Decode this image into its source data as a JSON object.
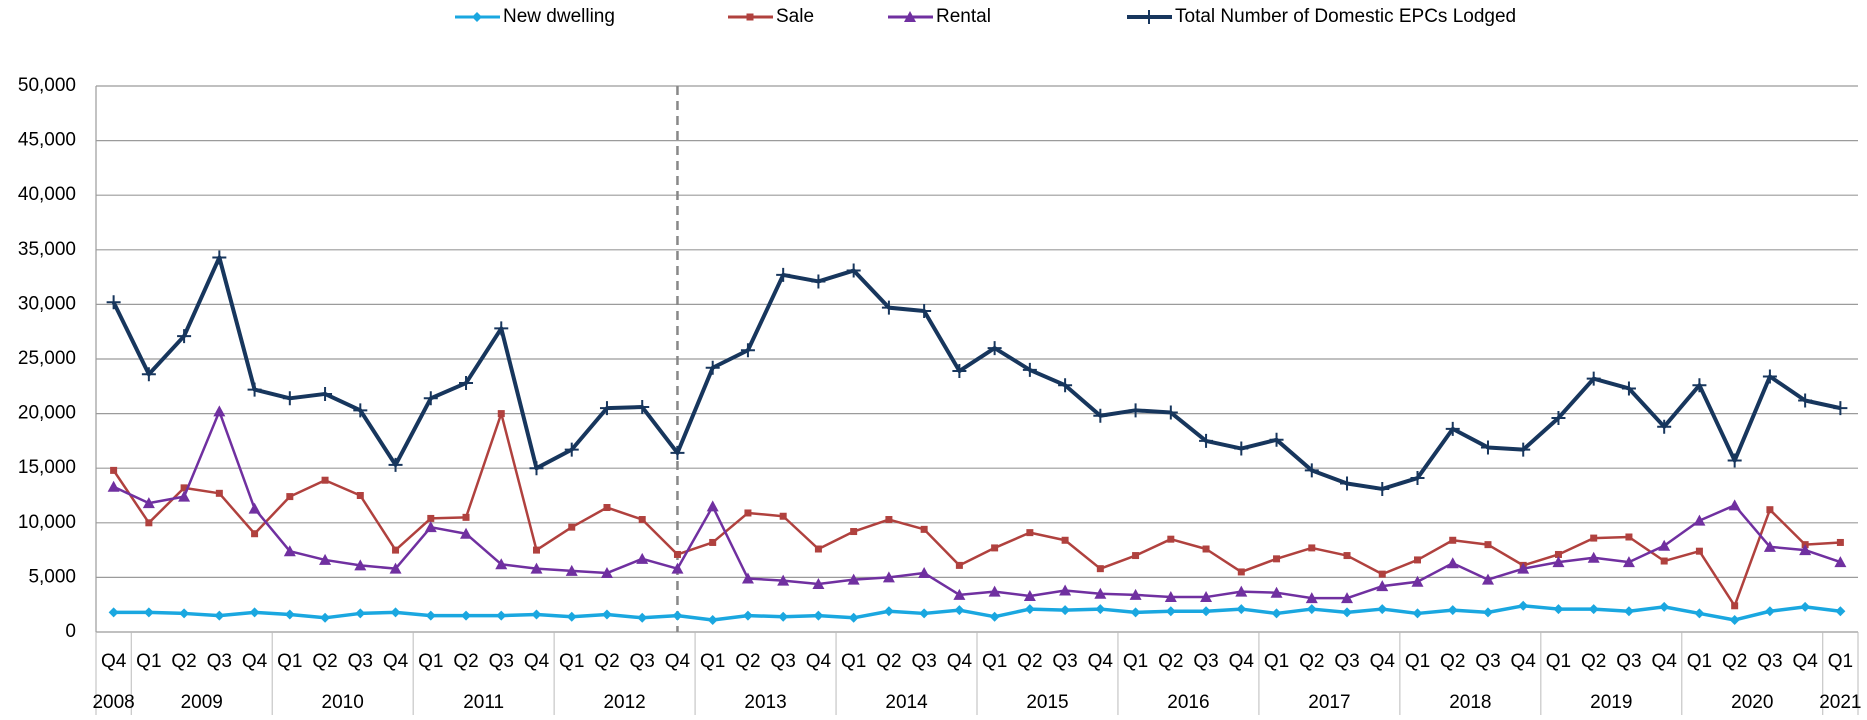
{
  "chart_data": {
    "type": "line",
    "categories": [
      "Q4",
      "Q1",
      "Q2",
      "Q3",
      "Q4",
      "Q1",
      "Q2",
      "Q3",
      "Q4",
      "Q1",
      "Q2",
      "Q3",
      "Q4",
      "Q1",
      "Q2",
      "Q3",
      "Q4",
      "Q1",
      "Q2",
      "Q3",
      "Q4",
      "Q1",
      "Q2",
      "Q3",
      "Q4",
      "Q1",
      "Q2",
      "Q3",
      "Q4",
      "Q1",
      "Q2",
      "Q3",
      "Q4",
      "Q1",
      "Q2",
      "Q3",
      "Q4",
      "Q1",
      "Q2",
      "Q3",
      "Q4",
      "Q1",
      "Q2",
      "Q3",
      "Q4",
      "Q1",
      "Q2",
      "Q3",
      "Q4",
      "Q1"
    ],
    "category_groups": [
      {
        "label": "2008",
        "count": 1
      },
      {
        "label": "2009",
        "count": 4
      },
      {
        "label": "2010",
        "count": 4
      },
      {
        "label": "2011",
        "count": 4
      },
      {
        "label": "2012",
        "count": 4
      },
      {
        "label": "2013",
        "count": 4
      },
      {
        "label": "2014",
        "count": 4
      },
      {
        "label": "2015",
        "count": 4
      },
      {
        "label": "2016",
        "count": 4
      },
      {
        "label": "2017",
        "count": 4
      },
      {
        "label": "2018",
        "count": 4
      },
      {
        "label": "2019",
        "count": 4
      },
      {
        "label": "2020",
        "count": 4
      },
      {
        "label": "2021",
        "count": 1
      }
    ],
    "series": [
      {
        "name": "New dwelling",
        "color": "#1aa7e0",
        "marker": "diamond",
        "values": [
          1800,
          1800,
          1700,
          1500,
          1800,
          1600,
          1300,
          1700,
          1800,
          1500,
          1500,
          1500,
          1600,
          1400,
          1600,
          1300,
          1500,
          1100,
          1500,
          1400,
          1500,
          1300,
          1900,
          1700,
          2000,
          1400,
          2100,
          2000,
          2100,
          1800,
          1900,
          1900,
          2100,
          1700,
          2100,
          1800,
          2100,
          1700,
          2000,
          1800,
          2400,
          2100,
          2100,
          1900,
          2300,
          1700,
          1100,
          1900,
          2300,
          1900
        ]
      },
      {
        "name": "Sale",
        "color": "#b0413e",
        "marker": "square",
        "values": [
          14800,
          10000,
          13200,
          12700,
          9000,
          12400,
          13900,
          12500,
          7500,
          10400,
          10500,
          20000,
          7500,
          9600,
          11400,
          10300,
          7100,
          8200,
          10900,
          10600,
          7600,
          9200,
          10300,
          9400,
          6100,
          7700,
          9100,
          8400,
          5800,
          7000,
          8500,
          7600,
          5500,
          6700,
          7700,
          7000,
          5300,
          6600,
          8400,
          8000,
          6100,
          7100,
          8600,
          8700,
          6500,
          7400,
          2400,
          11200,
          8000,
          8200
        ]
      },
      {
        "name": "Rental",
        "color": "#7030a0",
        "marker": "triangle",
        "values": [
          13300,
          11800,
          12400,
          20200,
          11300,
          7400,
          6600,
          6100,
          5800,
          9600,
          9000,
          6200,
          5800,
          5600,
          5400,
          6700,
          5800,
          11500,
          4900,
          4700,
          4400,
          4800,
          5000,
          5400,
          3400,
          3700,
          3300,
          3800,
          3500,
          3400,
          3200,
          3200,
          3700,
          3600,
          3100,
          3100,
          4200,
          4600,
          6300,
          4800,
          5800,
          6400,
          6800,
          6400,
          7900,
          10200,
          11600,
          7800,
          7500,
          6400
        ]
      },
      {
        "name": "Total Number of Domestic EPCs Lodged",
        "color": "#17365d",
        "marker": "plus",
        "values": [
          30200,
          23600,
          27100,
          34300,
          22200,
          21400,
          21800,
          20300,
          15300,
          21400,
          22800,
          27800,
          15000,
          16700,
          20500,
          20600,
          16400,
          24200,
          25800,
          32700,
          32100,
          33100,
          29700,
          29400,
          23900,
          26000,
          24000,
          22600,
          19800,
          20300,
          20100,
          17500,
          16800,
          17600,
          14800,
          13600,
          13100,
          14100,
          18600,
          16900,
          16700,
          19600,
          23200,
          22300,
          18800,
          22600,
          15700,
          23400,
          21200,
          20500
        ]
      }
    ],
    "ylim": [
      0,
      50000
    ],
    "yticks": [
      0,
      {
        "value": 5000,
        "label": "5,000"
      },
      {
        "value": 10000,
        "label": "10,000"
      },
      {
        "value": 15000,
        "label": "15,000"
      },
      {
        "value": 20000,
        "label": "20,000"
      },
      {
        "value": 25000,
        "label": "25,000"
      },
      {
        "value": 30000,
        "label": "30,000"
      },
      {
        "value": 35000,
        "label": "35,000"
      },
      {
        "value": 40000,
        "label": "40,000"
      },
      {
        "value": 45000,
        "label": "45,000"
      },
      {
        "value": 50000,
        "label": "50,000"
      }
    ],
    "grid": true,
    "legend": "top",
    "reference_line": {
      "category_index": 16,
      "style": "dashed"
    }
  }
}
